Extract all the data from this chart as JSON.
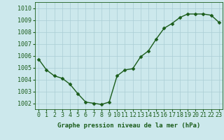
{
  "x": [
    0,
    1,
    2,
    3,
    4,
    5,
    6,
    7,
    8,
    9,
    10,
    11,
    12,
    13,
    14,
    15,
    16,
    17,
    18,
    19,
    20,
    21,
    22,
    23
  ],
  "y": [
    1005.7,
    1004.8,
    1004.3,
    1004.1,
    1003.6,
    1002.8,
    1002.1,
    1002.0,
    1001.9,
    1002.1,
    1004.3,
    1004.8,
    1004.9,
    1005.9,
    1006.4,
    1007.4,
    1008.3,
    1008.7,
    1009.2,
    1009.5,
    1009.5,
    1009.5,
    1009.4,
    1008.8
  ],
  "ylim": [
    1001.5,
    1010.5
  ],
  "yticks": [
    1002,
    1003,
    1004,
    1005,
    1006,
    1007,
    1008,
    1009,
    1010
  ],
  "xticks": [
    0,
    1,
    2,
    3,
    4,
    5,
    6,
    7,
    8,
    9,
    10,
    11,
    12,
    13,
    14,
    15,
    16,
    17,
    18,
    19,
    20,
    21,
    22,
    23
  ],
  "xlabel": "Graphe pression niveau de la mer (hPa)",
  "line_color": "#1a5c1a",
  "marker_color": "#1a5c1a",
  "bg_color": "#cce8ec",
  "grid_color": "#aacdd4",
  "axis_color": "#1a5c1a",
  "tick_color": "#1a5c1a",
  "label_color": "#1a5c1a",
  "xlabel_fontsize": 6.5,
  "tick_fontsize": 6.0,
  "line_width": 1.0,
  "marker_size": 2.5
}
